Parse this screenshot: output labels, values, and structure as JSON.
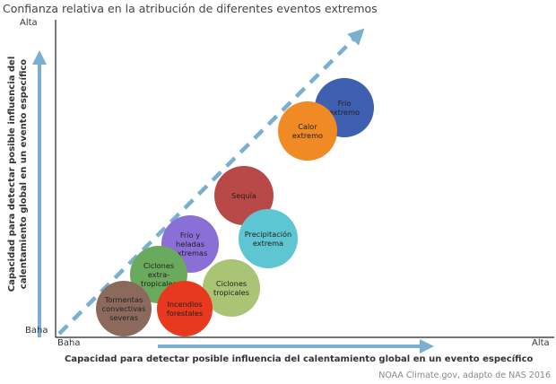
{
  "title": "Confianza relativa en la atribución de diferentes eventos extremos",
  "axes": {
    "y_label": "Capacidad para detectar posible influencia del calentamiento global en un evento específico",
    "x_label": "Capacidad para detectar posible influencia del calentamiento global en un evento específico",
    "y_high": "Alta",
    "y_low": "Baha",
    "x_low": "Baha",
    "x_high": "Alta"
  },
  "credit": "NOAA Climate.gov, adapto de NAS 2016",
  "colors": {
    "arrow": "#7bafd1",
    "axis": "#222222"
  },
  "events": [
    {
      "id": "frio-extremo",
      "lines": [
        "Frío",
        "extremo"
      ],
      "color": "#3f5fb0"
    },
    {
      "id": "calor-extremo",
      "lines": [
        "Calor",
        "extremo"
      ],
      "color": "#f08a24"
    },
    {
      "id": "sequia",
      "lines": [
        "Sequía"
      ],
      "color": "#b94848"
    },
    {
      "id": "precipitacion-extrema",
      "lines": [
        "Precipitación",
        "extrema"
      ],
      "color": "#5ec5d2"
    },
    {
      "id": "frio-heladas",
      "lines": [
        "Frío y",
        "heladas",
        "extremas"
      ],
      "color": "#8a6fd6"
    },
    {
      "id": "ciclones-tropicales",
      "lines": [
        "Ciclones",
        "tropicales"
      ],
      "color": "#a9c474"
    },
    {
      "id": "ciclones-extratropicales",
      "lines": [
        "Ciclones",
        "extra-",
        "tropicales"
      ],
      "color": "#6aaa5c"
    },
    {
      "id": "incendios-forestales",
      "lines": [
        "Incendios",
        "forestales"
      ],
      "color": "#e8391f"
    },
    {
      "id": "tormentas-convectivas",
      "lines": [
        "Tormentas",
        "convectivas",
        "severas"
      ],
      "color": "#8b6a5c"
    }
  ]
}
